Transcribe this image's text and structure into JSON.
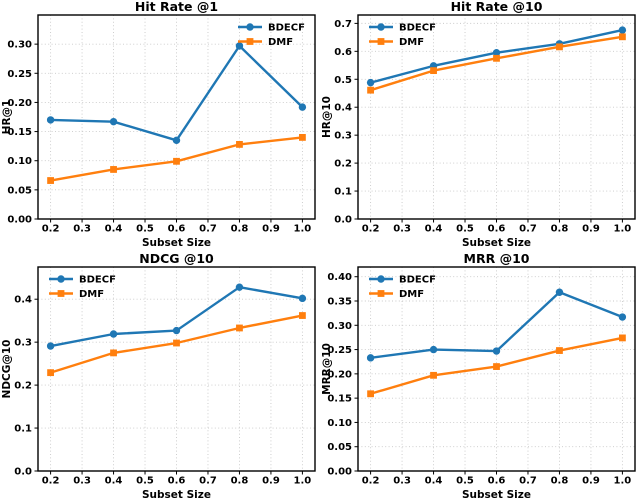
{
  "figure": {
    "background": "#ffffff",
    "grid_color": "#c9c9c9",
    "spine_color": "#000000"
  },
  "colors": {
    "bdecf": "#1f77b4",
    "dmf": "#ff7f0e"
  },
  "chart_data": [
    {
      "type": "line",
      "title": "Hit Rate @1",
      "xlabel": "Subset Size",
      "ylabel": "HR@1",
      "x": [
        0.2,
        0.4,
        0.6,
        0.8,
        1.0
      ],
      "series": [
        {
          "name": "BDECF",
          "color": "#1f77b4",
          "marker": "circle",
          "values": [
            0.17,
            0.167,
            0.135,
            0.297,
            0.192
          ]
        },
        {
          "name": "DMF",
          "color": "#ff7f0e",
          "marker": "square",
          "values": [
            0.066,
            0.085,
            0.099,
            0.128,
            0.14
          ]
        }
      ],
      "xlim": [
        0.16,
        1.04
      ],
      "ylim": [
        0,
        0.35
      ],
      "xticks": [
        0.2,
        0.3,
        0.4,
        0.5,
        0.6,
        0.7,
        0.8,
        0.9,
        1.0
      ],
      "yticks": [
        0.0,
        0.05,
        0.1,
        0.15,
        0.2,
        0.25,
        0.3
      ],
      "xtick_decimals": 1,
      "ytick_decimals": 2,
      "legend_pos": "upper right",
      "grid": true
    },
    {
      "type": "line",
      "title": "Hit Rate @10",
      "xlabel": "Subset Size",
      "ylabel": "HR@10",
      "x": [
        0.2,
        0.4,
        0.6,
        0.8,
        1.0
      ],
      "series": [
        {
          "name": "BDECF",
          "color": "#1f77b4",
          "marker": "circle",
          "values": [
            0.488,
            0.548,
            0.595,
            0.627,
            0.676
          ]
        },
        {
          "name": "DMF",
          "color": "#ff7f0e",
          "marker": "square",
          "values": [
            0.461,
            0.531,
            0.575,
            0.616,
            0.652
          ]
        }
      ],
      "xlim": [
        0.16,
        1.04
      ],
      "ylim": [
        0,
        0.73
      ],
      "xticks": [
        0.2,
        0.3,
        0.4,
        0.5,
        0.6,
        0.7,
        0.8,
        0.9,
        1.0
      ],
      "yticks": [
        0.0,
        0.1,
        0.2,
        0.3,
        0.4,
        0.5,
        0.6,
        0.7
      ],
      "xtick_decimals": 1,
      "ytick_decimals": 1,
      "legend_pos": "upper left",
      "grid": true
    },
    {
      "type": "line",
      "title": "NDCG @10",
      "xlabel": "Subset Size",
      "ylabel": "NDCG@10",
      "x": [
        0.2,
        0.4,
        0.6,
        0.8,
        1.0
      ],
      "series": [
        {
          "name": "BDECF",
          "color": "#1f77b4",
          "marker": "circle",
          "values": [
            0.291,
            0.319,
            0.327,
            0.428,
            0.402
          ]
        },
        {
          "name": "DMF",
          "color": "#ff7f0e",
          "marker": "square",
          "values": [
            0.229,
            0.275,
            0.298,
            0.333,
            0.362
          ]
        }
      ],
      "xlim": [
        0.16,
        1.04
      ],
      "ylim": [
        0,
        0.475
      ],
      "xticks": [
        0.2,
        0.3,
        0.4,
        0.5,
        0.6,
        0.7,
        0.8,
        0.9,
        1.0
      ],
      "yticks": [
        0.0,
        0.1,
        0.2,
        0.3,
        0.4
      ],
      "xtick_decimals": 1,
      "ytick_decimals": 1,
      "legend_pos": "upper left",
      "grid": true
    },
    {
      "type": "line",
      "title": "MRR @10",
      "xlabel": "Subset Size",
      "ylabel": "MRR@10",
      "x": [
        0.2,
        0.4,
        0.6,
        0.8,
        1.0
      ],
      "series": [
        {
          "name": "BDECF",
          "color": "#1f77b4",
          "marker": "circle",
          "values": [
            0.233,
            0.25,
            0.247,
            0.368,
            0.317
          ]
        },
        {
          "name": "DMF",
          "color": "#ff7f0e",
          "marker": "square",
          "values": [
            0.159,
            0.197,
            0.215,
            0.248,
            0.274
          ]
        }
      ],
      "xlim": [
        0.16,
        1.04
      ],
      "ylim": [
        0,
        0.42
      ],
      "xticks": [
        0.2,
        0.3,
        0.4,
        0.5,
        0.6,
        0.7,
        0.8,
        0.9,
        1.0
      ],
      "yticks": [
        0.0,
        0.05,
        0.1,
        0.15,
        0.2,
        0.25,
        0.3,
        0.35,
        0.4
      ],
      "xtick_decimals": 1,
      "ytick_decimals": 2,
      "legend_pos": "upper left",
      "grid": true
    }
  ]
}
